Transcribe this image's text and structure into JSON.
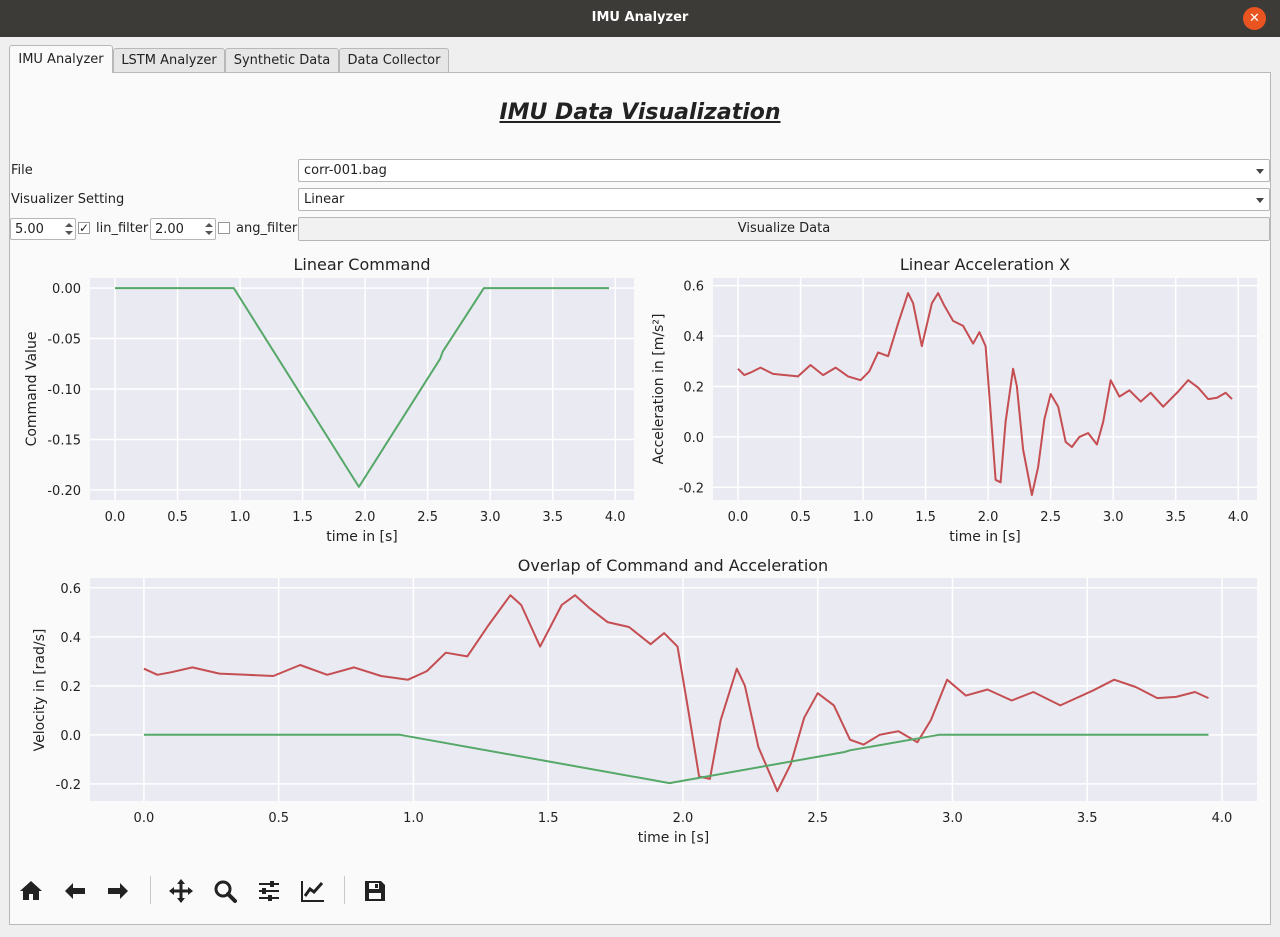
{
  "window": {
    "title": "IMU Analyzer"
  },
  "tabs": [
    {
      "label": "IMU Analyzer"
    },
    {
      "label": "LSTM Analyzer"
    },
    {
      "label": "Synthetic Data"
    },
    {
      "label": "Data Collector"
    }
  ],
  "heading": "IMU Data Visualization",
  "form": {
    "file_label": "File",
    "file_value": "corr-001.bag",
    "setting_label": "Visualizer Setting",
    "setting_value": "Linear",
    "lin_value": "5.00",
    "lin_filter_label": "lin_filter",
    "lin_filter_checked": true,
    "ang_value": "2.00",
    "ang_filter_label": "ang_filter",
    "ang_filter_checked": false,
    "visualize_label": "Visualize Data"
  },
  "toolbar": {
    "icons": [
      "home-icon",
      "back-arrow-icon",
      "forward-arrow-icon",
      "pan-icon",
      "zoom-icon",
      "configure-subplots-icon",
      "edit-axis-icon",
      "save-icon"
    ]
  },
  "colors": {
    "command": "#55a868",
    "acceleration": "#c44e52",
    "plot_bg": "#eaeaf2"
  },
  "chart_data": [
    {
      "type": "line",
      "title": "Linear Command",
      "xlabel": "time in [s]",
      "ylabel": "Command Value",
      "xlim": [
        -0.2,
        4.15
      ],
      "ylim": [
        -0.21,
        0.01
      ],
      "xticks": [
        "0.0",
        "0.5",
        "1.0",
        "1.5",
        "2.0",
        "2.5",
        "3.0",
        "3.5",
        "4.0"
      ],
      "yticks": [
        "0.00",
        "-0.05",
        "-0.10",
        "-0.15",
        "-0.20"
      ],
      "grid": true,
      "series": [
        {
          "color": "#55a868",
          "x": [
            0,
            0.95,
            1.95,
            2.6,
            2.62,
            2.95,
            3.95
          ],
          "y": [
            0,
            0,
            -0.197,
            -0.07,
            -0.063,
            0,
            0
          ]
        }
      ]
    },
    {
      "type": "line",
      "title": "Linear Acceleration X",
      "xlabel": "time in [s]",
      "ylabel": "Acceleration in [m/s²]",
      "xlim": [
        -0.2,
        4.15
      ],
      "ylim": [
        -0.25,
        0.63
      ],
      "xticks": [
        "0.0",
        "0.5",
        "1.0",
        "1.5",
        "2.0",
        "2.5",
        "3.0",
        "3.5",
        "4.0"
      ],
      "yticks": [
        "0.6",
        "0.4",
        "0.2",
        "0.0",
        "-0.2"
      ],
      "grid": true,
      "series": [
        {
          "color": "#c44e52",
          "x": [
            0,
            0.05,
            0.1,
            0.18,
            0.28,
            0.38,
            0.48,
            0.58,
            0.68,
            0.78,
            0.88,
            0.98,
            1.05,
            1.12,
            1.2,
            1.28,
            1.36,
            1.4,
            1.47,
            1.55,
            1.6,
            1.65,
            1.72,
            1.8,
            1.88,
            1.93,
            1.98,
            2.02,
            2.06,
            2.1,
            2.14,
            2.2,
            2.23,
            2.28,
            2.35,
            2.4,
            2.45,
            2.5,
            2.56,
            2.62,
            2.67,
            2.73,
            2.8,
            2.87,
            2.92,
            2.98,
            3.05,
            3.13,
            3.22,
            3.3,
            3.4,
            3.52,
            3.6,
            3.68,
            3.76,
            3.83,
            3.9,
            3.95
          ],
          "y": [
            0.27,
            0.245,
            0.255,
            0.275,
            0.25,
            0.245,
            0.24,
            0.285,
            0.245,
            0.275,
            0.24,
            0.225,
            0.26,
            0.335,
            0.32,
            0.45,
            0.57,
            0.53,
            0.36,
            0.53,
            0.57,
            0.52,
            0.46,
            0.44,
            0.37,
            0.415,
            0.36,
            0.1,
            -0.17,
            -0.18,
            0.06,
            0.27,
            0.2,
            -0.05,
            -0.23,
            -0.12,
            0.07,
            0.17,
            0.12,
            -0.02,
            -0.04,
            0.0,
            0.015,
            -0.03,
            0.06,
            0.225,
            0.16,
            0.185,
            0.14,
            0.175,
            0.12,
            0.18,
            0.225,
            0.195,
            0.15,
            0.155,
            0.175,
            0.15
          ]
        }
      ]
    },
    {
      "type": "line",
      "title": "Overlap of Command and Acceleration",
      "xlabel": "time in [s]",
      "ylabel": "Velocity in [rad/s]",
      "xlim": [
        -0.2,
        4.13
      ],
      "ylim": [
        -0.27,
        0.64
      ],
      "xticks": [
        "0.0",
        "0.5",
        "1.0",
        "1.5",
        "2.0",
        "2.5",
        "3.0",
        "3.5",
        "4.0"
      ],
      "yticks": [
        "0.6",
        "0.4",
        "0.2",
        "0.0",
        "-0.2"
      ],
      "grid": true,
      "series": [
        {
          "color": "#c44e52",
          "x": [
            0,
            0.05,
            0.1,
            0.18,
            0.28,
            0.38,
            0.48,
            0.58,
            0.68,
            0.78,
            0.88,
            0.98,
            1.05,
            1.12,
            1.2,
            1.28,
            1.36,
            1.4,
            1.47,
            1.55,
            1.6,
            1.65,
            1.72,
            1.8,
            1.88,
            1.93,
            1.98,
            2.02,
            2.06,
            2.1,
            2.14,
            2.2,
            2.23,
            2.28,
            2.35,
            2.4,
            2.45,
            2.5,
            2.56,
            2.62,
            2.67,
            2.73,
            2.8,
            2.87,
            2.92,
            2.98,
            3.05,
            3.13,
            3.22,
            3.3,
            3.4,
            3.52,
            3.6,
            3.68,
            3.76,
            3.83,
            3.9,
            3.95
          ],
          "y": [
            0.27,
            0.245,
            0.255,
            0.275,
            0.25,
            0.245,
            0.24,
            0.285,
            0.245,
            0.275,
            0.24,
            0.225,
            0.26,
            0.335,
            0.32,
            0.45,
            0.57,
            0.53,
            0.36,
            0.53,
            0.57,
            0.52,
            0.46,
            0.44,
            0.37,
            0.415,
            0.36,
            0.1,
            -0.17,
            -0.18,
            0.06,
            0.27,
            0.2,
            -0.05,
            -0.23,
            -0.12,
            0.07,
            0.17,
            0.12,
            -0.02,
            -0.04,
            0.0,
            0.015,
            -0.03,
            0.06,
            0.225,
            0.16,
            0.185,
            0.14,
            0.175,
            0.12,
            0.18,
            0.225,
            0.195,
            0.15,
            0.155,
            0.175,
            0.15
          ]
        },
        {
          "color": "#55a868",
          "x": [
            0,
            0.95,
            1.95,
            2.6,
            2.62,
            2.95,
            3.95
          ],
          "y": [
            0,
            0,
            -0.197,
            -0.07,
            -0.063,
            0,
            0
          ]
        }
      ]
    }
  ]
}
